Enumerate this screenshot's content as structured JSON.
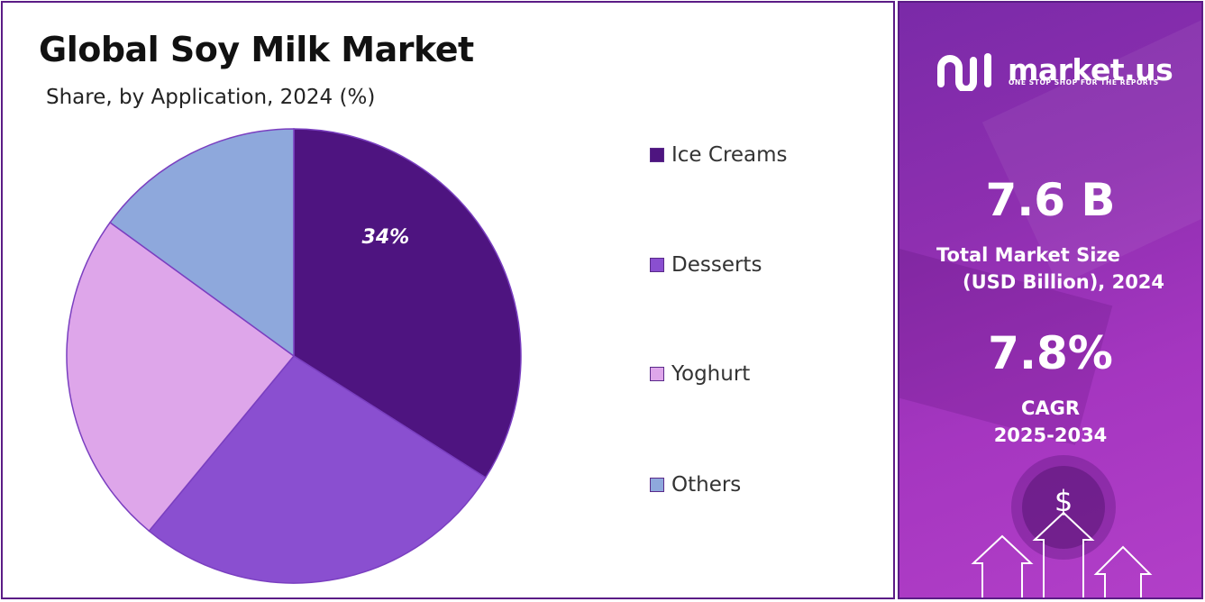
{
  "title": "Global Soy Milk Market",
  "subtitle": "Share, by Application, 2024 (%)",
  "chart_data": {
    "type": "pie",
    "title": "Global Soy Milk Market",
    "subtitle": "Share, by Application, 2024 (%)",
    "categories": [
      "Ice Creams",
      "Desserts",
      "Yoghurt",
      "Others"
    ],
    "values": [
      34,
      27,
      24,
      15
    ],
    "colors": [
      "#4e1480",
      "#8a4fd0",
      "#dea6ea",
      "#8ea8dc"
    ],
    "data_labels": [
      "34%",
      "",
      "",
      ""
    ],
    "legend_position": "right"
  },
  "brand": {
    "name": "market.us",
    "tagline": "ONE STOP SHOP FOR THE REPORTS"
  },
  "stats": {
    "market_size_value": "7.6 B",
    "market_size_label_1": "Total Market Size",
    "market_size_label_2": "(USD Billion), 2024",
    "cagr_value": "7.8%",
    "cagr_label_1": "CAGR",
    "cagr_label_2": "2025-2034"
  },
  "icons": {
    "logo": "market-us-logo-icon",
    "dollar": "dollar-sign-icon",
    "arrows": "growth-arrows-icon"
  }
}
